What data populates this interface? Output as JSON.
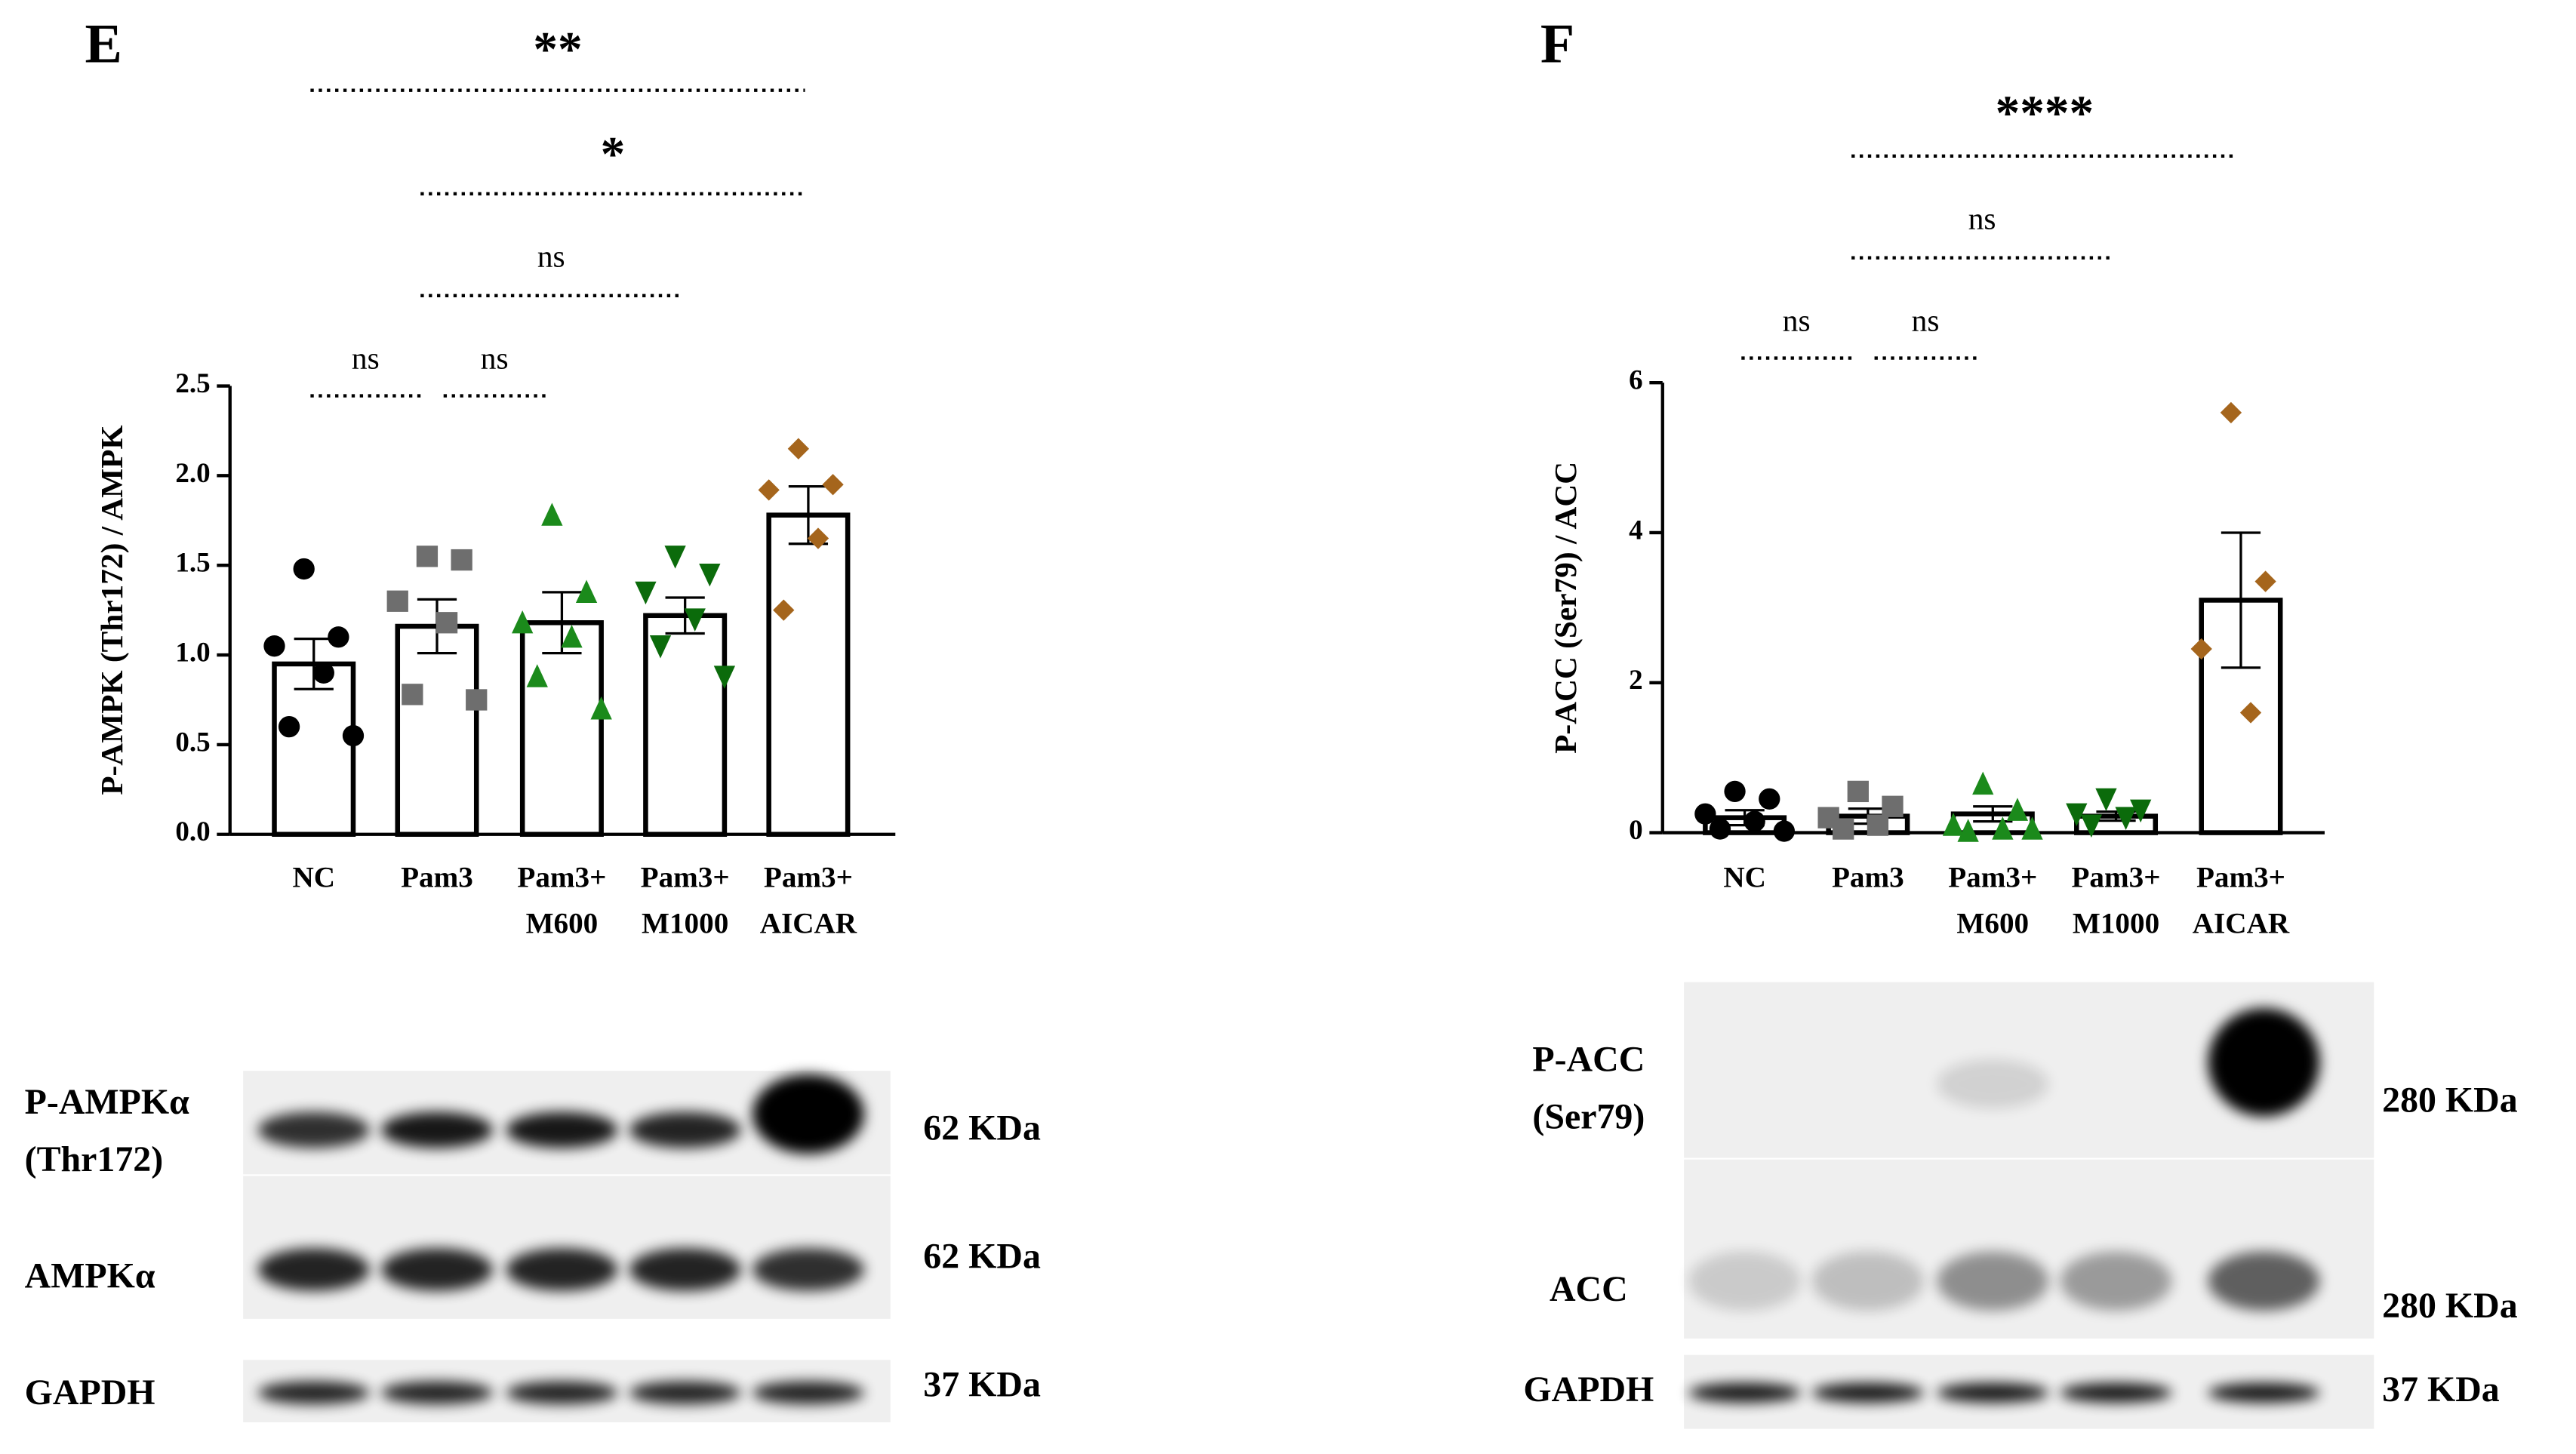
{
  "chart_data": [
    {
      "type": "bar",
      "panel": "E",
      "y_label": "P-AMPK (Thr172) / AMPK",
      "categories": [
        [
          "NC"
        ],
        [
          "Pam3"
        ],
        [
          "Pam3+",
          "M600"
        ],
        [
          "Pam3+",
          "M1000"
        ],
        [
          "Pam3+",
          "AICAR"
        ]
      ],
      "values": [
        0.95,
        1.16,
        1.18,
        1.22,
        1.78
      ],
      "errors": [
        0.14,
        0.15,
        0.17,
        0.1,
        0.16
      ],
      "points": [
        [
          1.48,
          1.1,
          1.05,
          0.9,
          0.6,
          0.55
        ],
        [
          1.55,
          1.53,
          1.3,
          1.18,
          0.78,
          0.75
        ],
        [
          1.78,
          1.35,
          1.18,
          1.1,
          0.88,
          0.7
        ],
        [
          1.55,
          1.45,
          1.35,
          1.2,
          1.05,
          0.88
        ],
        [
          2.15,
          1.95,
          1.92,
          1.65,
          1.25
        ]
      ],
      "point_colors": [
        "#000000",
        "#6e6e6e",
        "#1b8a1b",
        "#0b6b0b",
        "#a5651c"
      ],
      "markers": [
        "circle",
        "square",
        "triangle-up",
        "triangle-down",
        "diamond"
      ],
      "ylim": [
        0,
        2.5
      ],
      "yticks": [
        {
          "value": 0,
          "label": "0.0"
        },
        {
          "value": 0.5,
          "label": "0.5"
        },
        {
          "value": 1,
          "label": "1.0"
        },
        {
          "value": 1.5,
          "label": "1.5"
        },
        {
          "value": 2,
          "label": "2.0"
        },
        {
          "value": 2.5,
          "label": "2.5"
        }
      ],
      "significance": [
        "**",
        "*",
        "ns",
        "ns",
        "ns"
      ]
    },
    {
      "type": "bar",
      "panel": "F",
      "y_label": "P-ACC (Ser79) / ACC",
      "categories": [
        [
          "NC"
        ],
        [
          "Pam3"
        ],
        [
          "Pam3+",
          "M600"
        ],
        [
          "Pam3+",
          "M1000"
        ],
        [
          "Pam3+",
          "AICAR"
        ]
      ],
      "values": [
        0.2,
        0.22,
        0.25,
        0.22,
        3.1
      ],
      "errors": [
        0.1,
        0.1,
        0.1,
        0.06,
        0.9
      ],
      "points": [
        [
          0.55,
          0.45,
          0.25,
          0.15,
          0.05,
          0.02
        ],
        [
          0.55,
          0.35,
          0.2,
          0.1,
          0.05
        ],
        [
          0.65,
          0.3,
          0.1,
          0.05,
          0.02,
          0.05
        ],
        [
          0.45,
          0.3,
          0.25,
          0.2,
          0.1
        ],
        [
          5.6,
          3.35,
          2.45,
          1.6
        ]
      ],
      "point_colors": [
        "#000000",
        "#6e6e6e",
        "#1b8a1b",
        "#0b6b0b",
        "#a5651c"
      ],
      "markers": [
        "circle",
        "square",
        "triangle-up",
        "triangle-down",
        "diamond"
      ],
      "ylim": [
        0,
        6
      ],
      "yticks": [
        0,
        2,
        4,
        6
      ],
      "significance": [
        "****",
        "ns",
        "ns",
        "ns"
      ]
    }
  ],
  "blots": [
    {
      "rows": [
        {
          "label": [
            "P-AMPKα",
            "(Thr172)"
          ],
          "size": "62 KDa"
        },
        {
          "label": [
            "AMPKα"
          ],
          "size": "62 KDa"
        },
        {
          "label": [
            "GAPDH"
          ],
          "size": "37 KDa"
        }
      ]
    },
    {
      "rows": [
        {
          "label": [
            "P-ACC",
            "(Ser79)"
          ],
          "size": "280 KDa"
        },
        {
          "label": [
            "ACC"
          ],
          "size": "280 KDa"
        },
        {
          "label": [
            "GAPDH"
          ],
          "size": "37 KDa"
        }
      ]
    }
  ]
}
